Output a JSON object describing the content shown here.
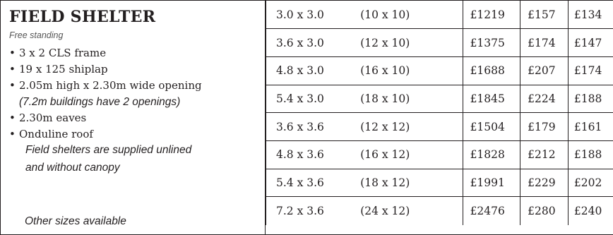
{
  "product": {
    "title": "FIELD SHELTER",
    "subtitle": "Free standing",
    "features": [
      {
        "text": "3 x 2 CLS frame"
      },
      {
        "text": "19 x 125 shiplap"
      },
      {
        "text": "2.05m high x 2.30m wide opening",
        "note": "(7.2m buildings have 2 openings)"
      },
      {
        "text": "2.30m eaves"
      },
      {
        "text": "Onduline roof"
      }
    ],
    "supply_note_line1": "Field shelters are supplied unlined",
    "supply_note_line2": "and without canopy",
    "other_sizes": "Other sizes available"
  },
  "price_table": {
    "rows": [
      {
        "metric": "3.0 x 3.0",
        "imperial": "(10 x 10)",
        "price1": "£1219",
        "price2": "£157",
        "price3": "£134"
      },
      {
        "metric": "3.6 x 3.0",
        "imperial": "(12 x 10)",
        "price1": "£1375",
        "price2": "£174",
        "price3": "£147"
      },
      {
        "metric": "4.8 x 3.0",
        "imperial": "(16 x 10)",
        "price1": "£1688",
        "price2": "£207",
        "price3": "£174"
      },
      {
        "metric": "5.4 x 3.0",
        "imperial": "(18 x 10)",
        "price1": "£1845",
        "price2": "£224",
        "price3": "£188"
      },
      {
        "metric": "3.6 x 3.6",
        "imperial": "(12 x 12)",
        "price1": "£1504",
        "price2": "£179",
        "price3": "£161"
      },
      {
        "metric": "4.8 x 3.6",
        "imperial": "(16 x 12)",
        "price1": "£1828",
        "price2": "£212",
        "price3": "£188"
      },
      {
        "metric": "5.4 x 3.6",
        "imperial": "(18 x 12)",
        "price1": "£1991",
        "price2": "£229",
        "price3": "£202"
      },
      {
        "metric": "7.2 x 3.6",
        "imperial": "(24 x 12)",
        "price1": "£2476",
        "price2": "£280",
        "price3": "£240"
      }
    ]
  },
  "colors": {
    "text": "#231f20",
    "border": "#231f20",
    "subtitle": "#555555",
    "background": "#ffffff"
  }
}
